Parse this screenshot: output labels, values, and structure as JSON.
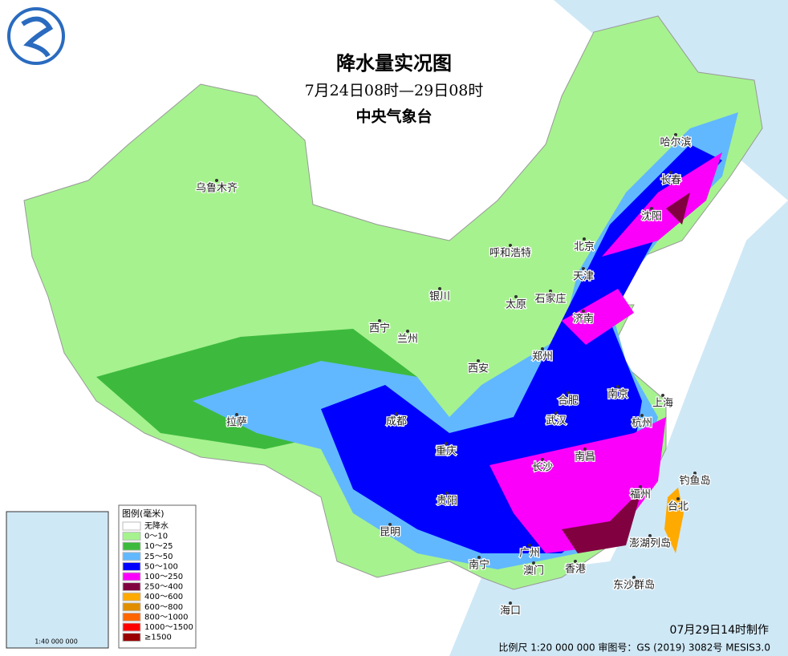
{
  "header": {
    "title": "降水量实况图",
    "subtitle": "7月24日08时—29日08时",
    "org": "中央气象台"
  },
  "cities": [
    "乌鲁木齐",
    "哈尔滨",
    "长春",
    "沈阳",
    "北京",
    "天津",
    "呼和浩特",
    "石家庄",
    "太原",
    "银川",
    "济南",
    "西宁",
    "兰州",
    "郑州",
    "西安",
    "合肥",
    "南京",
    "上海",
    "拉萨",
    "成都",
    "武汉",
    "杭州",
    "重庆",
    "长沙",
    "南昌",
    "福州",
    "贵阳",
    "台北",
    "昆明",
    "广州",
    "南宁",
    "澳门",
    "香港",
    "海口",
    "钓鱼岛",
    "澎湖列岛",
    "东沙群岛"
  ],
  "legend": {
    "title": "图例(毫米)",
    "items": [
      {
        "label": "无降水",
        "color": "#ffffff"
      },
      {
        "label": "0～10",
        "color": "#a6f28f"
      },
      {
        "label": "10～25",
        "color": "#3dba3d"
      },
      {
        "label": "25～50",
        "color": "#61b8ff"
      },
      {
        "label": "50～100",
        "color": "#0000ff"
      },
      {
        "label": "100～250",
        "color": "#fa00fa"
      },
      {
        "label": "250～400",
        "color": "#800040"
      },
      {
        "label": "400～600",
        "color": "#ffaa00"
      },
      {
        "label": "600～800",
        "color": "#e08e00"
      },
      {
        "label": "800～1000",
        "color": "#ff6600"
      },
      {
        "label": "1000～1500",
        "color": "#ff0000"
      },
      {
        "label": "≥1500",
        "color": "#990000"
      }
    ]
  },
  "footer": {
    "made": "07月29日14时制作",
    "scale": "比例尺 1:20 000 000 审图号：GS (2019) 3082号 MESIS3.0",
    "inset_scale": "1:40 000 000"
  }
}
